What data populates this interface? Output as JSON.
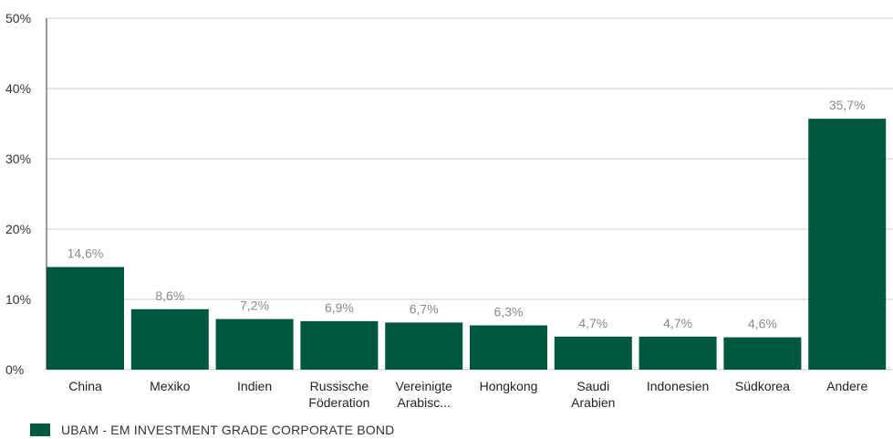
{
  "chart_data": {
    "type": "bar",
    "categories": [
      [
        "China"
      ],
      [
        "Mexiko"
      ],
      [
        "Indien"
      ],
      [
        "Russische",
        "Föderation"
      ],
      [
        "Vereinigte",
        "Arabisc..."
      ],
      [
        "Hongkong"
      ],
      [
        "Saudi",
        "Arabien"
      ],
      [
        "Indonesien"
      ],
      [
        "Südkorea"
      ],
      [
        "Andere"
      ]
    ],
    "values": [
      14.6,
      8.6,
      7.2,
      6.9,
      6.7,
      6.3,
      4.7,
      4.7,
      4.6,
      35.7
    ],
    "data_labels": [
      "14,6%",
      "8,6%",
      "7,2%",
      "6,9%",
      "6,7%",
      "6,3%",
      "4,7%",
      "4,7%",
      "4,6%",
      "35,7%"
    ],
    "y_ticks": [
      0,
      10,
      20,
      30,
      40,
      50
    ],
    "y_tick_labels": [
      "0%",
      "10%",
      "20%",
      "30%",
      "40%",
      "50%"
    ],
    "ylim": [
      0,
      50
    ],
    "grid": true,
    "legend_position": "bottom-left",
    "legend": [
      {
        "label": "UBAM - EM INVESTMENT GRADE CORPORATE BOND",
        "color": "#00573f"
      }
    ],
    "colors": {
      "bar": "#00573f",
      "grid": "#cccccc",
      "axis": "#333333"
    }
  }
}
